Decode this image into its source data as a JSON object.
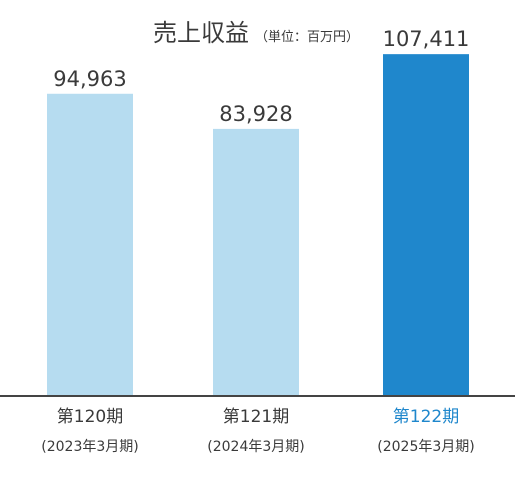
{
  "chart_data": {
    "type": "bar",
    "title": "売上収益",
    "unit_label": "（単位：百万円）",
    "categories": [
      {
        "period": "第120期",
        "date": "(2023年3月期)"
      },
      {
        "period": "第121期",
        "date": "(2024年3月期)"
      },
      {
        "period": "第122期",
        "date": "(2025年3月期)"
      }
    ],
    "values": [
      94963,
      83928,
      107411
    ],
    "value_labels": [
      "94,963",
      "83,928",
      "107,411"
    ],
    "ylim": [
      0,
      115000
    ],
    "grid": false,
    "highlight_index": 2
  },
  "colors": {
    "bar_default": "#b6dcf0",
    "bar_highlight": "#1f87cc",
    "axis": "#444444",
    "text": "#3a3a3a",
    "highlight_text": "#1f87cc"
  }
}
